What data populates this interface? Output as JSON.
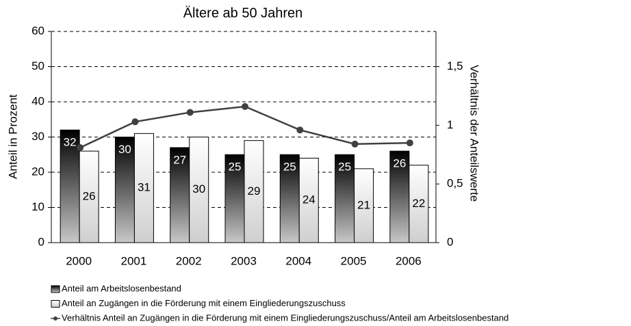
{
  "chart_data": {
    "type": "bar_line",
    "title": "Ältere ab 50 Jahren",
    "ylabel": "Anteil in Prozent",
    "y2label": "Verhältnis der Anteilswerte",
    "categories": [
      "2000",
      "2001",
      "2002",
      "2003",
      "2004",
      "2005",
      "2006"
    ],
    "series": [
      {
        "name": "Anteil am Arbeitslosenbestand",
        "type": "bar",
        "color": "#111111",
        "values": [
          32,
          30,
          27,
          25,
          25,
          25,
          26
        ]
      },
      {
        "name": "Anteil an Zugängen in die Förderung mit einem Eingliederungszuschuss",
        "type": "bar",
        "color": "#eeeeee",
        "values": [
          26,
          31,
          30,
          29,
          24,
          21,
          22
        ]
      },
      {
        "name": "Verhältnis Anteil an Zugängen in die Förderung mit einem Eingliederungszuschuss/Anteil am Arbeitslosenbestand",
        "type": "line",
        "axis": "y2",
        "color": "#404040",
        "values": [
          0.81,
          1.03,
          1.11,
          1.16,
          0.96,
          0.84,
          0.85
        ]
      }
    ],
    "ylim": [
      0,
      60
    ],
    "yticks": [
      0,
      10,
      20,
      30,
      40,
      50,
      60
    ],
    "y2lim": [
      0,
      1.8
    ],
    "y2ticks": [
      0,
      {
        "value": 0.5,
        "label": "0,5"
      },
      1,
      {
        "value": 1.5,
        "label": "1,5"
      }
    ],
    "grid": true,
    "legend": "bottom"
  }
}
